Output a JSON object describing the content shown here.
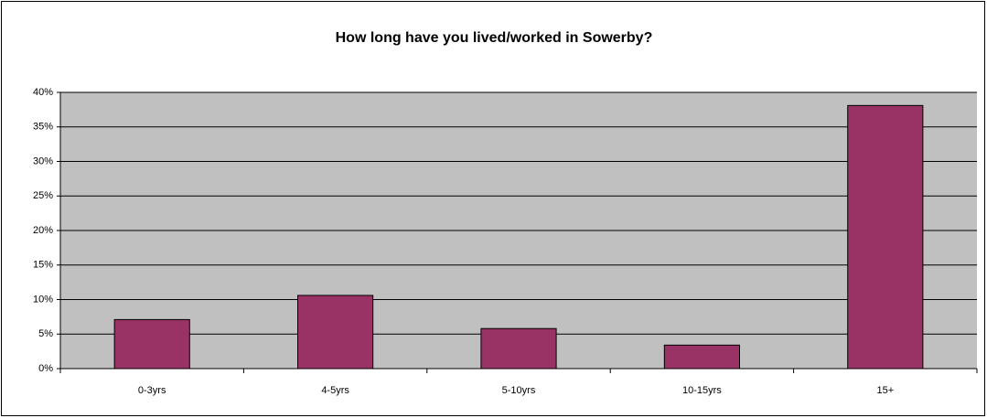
{
  "chart_data": {
    "type": "bar",
    "title": "How long have you lived/worked in Sowerby?",
    "categories": [
      "0-3yrs",
      "4-5yrs",
      "5-10yrs",
      "10-15yrs",
      "15+"
    ],
    "values": [
      7.1,
      10.6,
      5.8,
      3.4,
      38.1
    ],
    "color": "#993366",
    "ylim": [
      0,
      40
    ],
    "yticks": [
      {
        "value": 0,
        "label": "0%"
      },
      {
        "value": 5,
        "label": "5%"
      },
      {
        "value": 10,
        "label": "10%"
      },
      {
        "value": 15,
        "label": "15%"
      },
      {
        "value": 20,
        "label": "20%"
      },
      {
        "value": 25,
        "label": "25%"
      },
      {
        "value": 30,
        "label": "30%"
      },
      {
        "value": 35,
        "label": "35%"
      },
      {
        "value": 40,
        "label": "40%"
      }
    ],
    "grid": true
  }
}
